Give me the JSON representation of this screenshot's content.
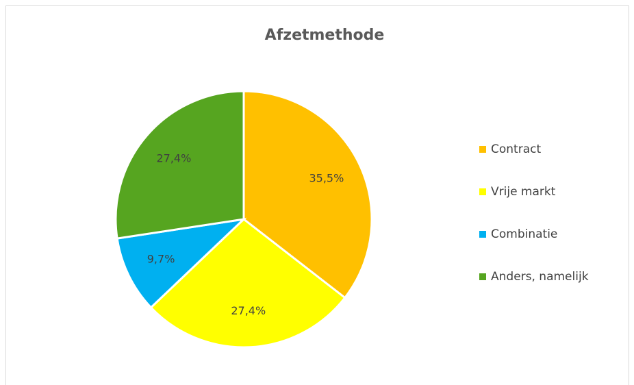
{
  "chart_data": {
    "type": "pie",
    "title": "Afzetmethode",
    "categories": [
      "Contract",
      "Vrije markt",
      "Combinatie",
      "Anders, namelijk"
    ],
    "values": [
      35.5,
      27.4,
      9.7,
      27.4
    ],
    "value_labels": [
      "35,5%",
      "27,4%",
      "9,7%",
      "27,4%"
    ],
    "colors": [
      "#FFC000",
      "#FFFF00",
      "#00B0F0",
      "#56A520"
    ],
    "legend": "right"
  }
}
